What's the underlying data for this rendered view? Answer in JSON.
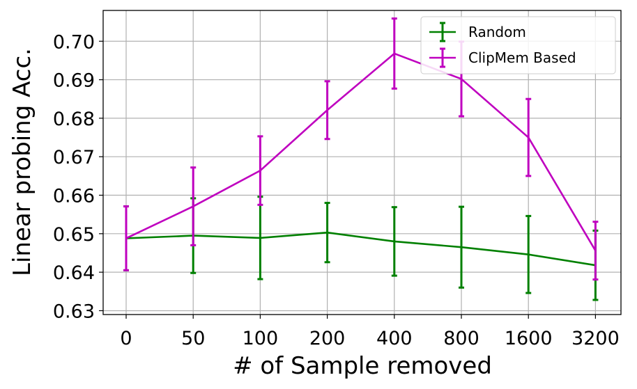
{
  "chart_data": {
    "type": "line",
    "xlabel": "# of Sample removed",
    "ylabel": "Linear probing Acc.",
    "categories": [
      "0",
      "50",
      "100",
      "200",
      "400",
      "800",
      "1600",
      "3200"
    ],
    "ylim": [
      0.629,
      0.708
    ],
    "yticks": [
      "0.63",
      "0.64",
      "0.65",
      "0.66",
      "0.67",
      "0.68",
      "0.69",
      "0.70"
    ],
    "grid": true,
    "legend_position": "top-right",
    "series": [
      {
        "name": "Random",
        "color": "#008000",
        "values": [
          0.6488,
          0.6495,
          0.6489,
          0.6503,
          0.648,
          0.6465,
          0.6446,
          0.6418
        ],
        "errors": [
          0.0083,
          0.0097,
          0.0107,
          0.0077,
          0.0089,
          0.0105,
          0.01,
          0.009
        ]
      },
      {
        "name": "ClipMem Based",
        "color": "#bf00bf",
        "values": [
          0.6488,
          0.6571,
          0.6664,
          0.6821,
          0.6968,
          0.6902,
          0.675,
          0.6456
        ],
        "errors": [
          0.0083,
          0.0101,
          0.0089,
          0.0075,
          0.0091,
          0.0097,
          0.01,
          0.0075
        ]
      }
    ]
  }
}
